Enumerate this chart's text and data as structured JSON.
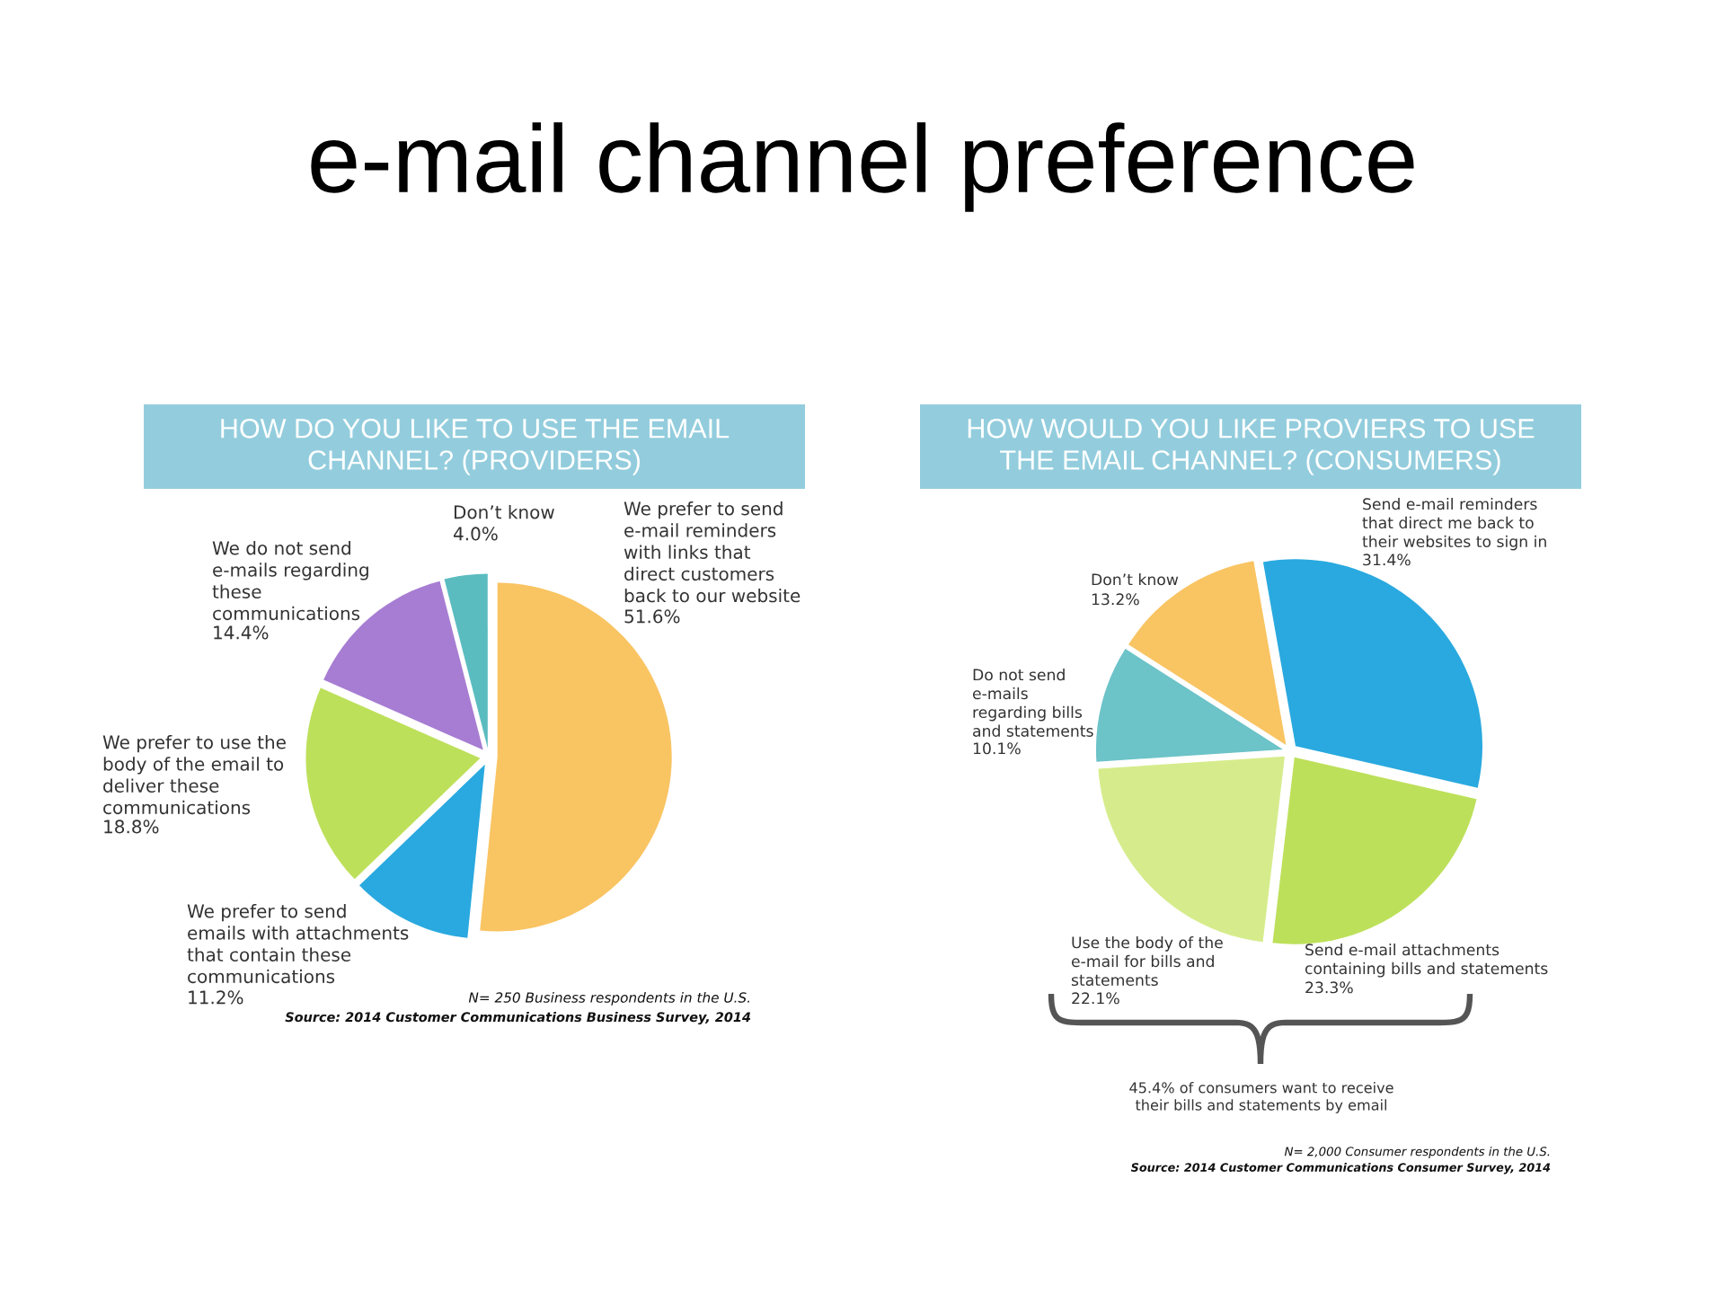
{
  "chart_data": [
    {
      "type": "other",
      "title": "e-mail channel preference"
    },
    {
      "type": "pie",
      "title": "HOW DO YOU LIKE TO USE THE EMAIL\nCHANNEL? (PROVIDERS)",
      "categories": [
        "We prefer to send\ne-mail reminders\nwith links that\ndirect customers\nback to our website",
        "We prefer to send\nemails with attachments\nthat contain these\ncommunications",
        "We prefer to use the\nbody of the email to\ndeliver these\ncommunications",
        "We do not send\ne-mails regarding\nthese\ncommunications",
        "Don’t know"
      ],
      "values": [
        51.6,
        11.2,
        18.8,
        14.4,
        4.0
      ],
      "value_labels": [
        "51.6%",
        "11.2%",
        "18.8%",
        "14.4%",
        "4.0%"
      ],
      "colors": [
        "#f9c462",
        "#29a9df",
        "#bde05a",
        "#a77dd3",
        "#5bbcc0"
      ],
      "annotations": [
        "N= 250 Business respondents in the U.S.",
        "Source: 2014 Customer Communications Business Survey, 2014"
      ]
    },
    {
      "type": "pie",
      "title": "HOW WOULD YOU LIKE PROVIERS TO USE\nTHE EMAIL CHANNEL? (CONSUMERS)",
      "categories": [
        "Send e-mail reminders\nthat direct me back to\ntheir websites to sign in",
        "Send e-mail attachments\ncontaining bills and statements",
        "Use the body of the\ne-mail for bills and\nstatements",
        "Do not send\ne-mails\nregarding bills\nand statements",
        "Don’t know"
      ],
      "values": [
        31.4,
        23.3,
        22.1,
        10.1,
        13.2
      ],
      "value_labels": [
        "31.4%",
        "23.3%",
        "22.1%",
        "10.1%",
        "13.2%"
      ],
      "colors": [
        "#29a9df",
        "#bde05a",
        "#d6ec8c",
        "#6cc3c8",
        "#f9c462"
      ],
      "annotations": [
        "45.4% of consumers want to receive\ntheir bills and statements by email",
        "N= 2,000 Consumer respondents in the U.S.",
        "Source: 2014 Customer Communications Consumer Survey, 2014"
      ]
    }
  ]
}
